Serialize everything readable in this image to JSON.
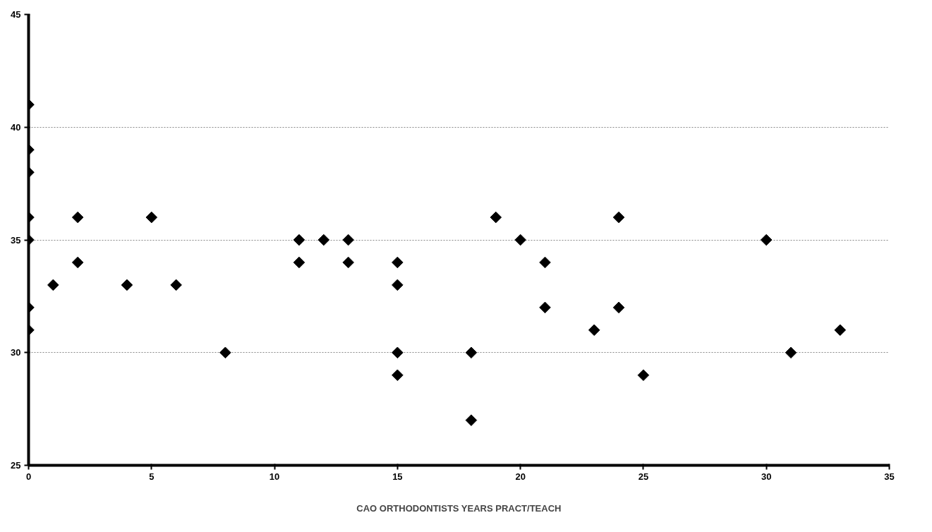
{
  "chart_data": {
    "type": "scatter",
    "xlabel": "CAO ORTHODONTISTS YEARS PRACT/TEACH",
    "x": [
      0,
      0,
      0,
      0,
      0,
      0,
      0,
      1,
      2,
      2,
      4,
      5,
      6,
      8,
      11,
      11,
      12,
      13,
      13,
      15,
      15,
      15,
      15,
      18,
      18,
      19,
      20,
      21,
      21,
      23,
      24,
      24,
      25,
      30,
      31,
      33
    ],
    "series": [
      {
        "color": "#000000",
        "values": [
          41,
          39,
          38,
          36,
          35,
          32,
          31,
          33,
          36,
          34,
          33,
          36,
          33,
          30,
          35,
          34,
          35,
          35,
          34,
          34,
          33,
          30,
          29,
          30,
          27,
          36,
          35,
          34,
          32,
          31,
          36,
          32,
          29,
          35,
          30,
          31
        ]
      }
    ],
    "xlim": [
      0,
      35
    ],
    "xticks": [
      0,
      5,
      10,
      15,
      20,
      25,
      30,
      35
    ],
    "ylim": [
      25,
      45
    ],
    "yticks": [
      25,
      30,
      35,
      40,
      45
    ],
    "grid": "y",
    "marker": "diamond"
  }
}
